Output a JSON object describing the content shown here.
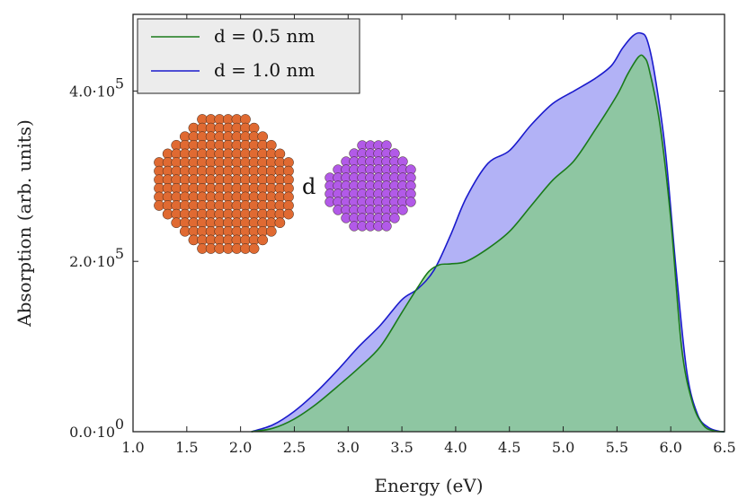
{
  "chart_data": {
    "type": "area",
    "title": "",
    "xlabel": "Energy (eV)",
    "ylabel": "Absorption (arb. units)",
    "xlim": [
      1.0,
      6.5
    ],
    "ylim": [
      0,
      490000
    ],
    "x_ticks": [
      "1.0",
      "1.5",
      "2.0",
      "2.5",
      "3.0",
      "3.5",
      "4.0",
      "4.5",
      "5.0",
      "5.5",
      "6.0",
      "6.5"
    ],
    "y_ticks": [
      {
        "value": 0,
        "base": "0.0·10",
        "exp": "0"
      },
      {
        "value": 200000,
        "base": "2.0·10",
        "exp": "5"
      },
      {
        "value": 400000,
        "base": "4.0·10",
        "exp": "5"
      }
    ],
    "grid": false,
    "legend_position": "top-left",
    "series": [
      {
        "name": "d = 0.5 nm",
        "line_color": "#1a7a1a",
        "fill_color": "#7fcf7f",
        "x": [
          2.1,
          2.3,
          2.5,
          2.7,
          2.9,
          3.1,
          3.3,
          3.5,
          3.65,
          3.75,
          3.85,
          3.95,
          4.1,
          4.3,
          4.5,
          4.7,
          4.9,
          5.1,
          5.3,
          5.5,
          5.6,
          5.7,
          5.75,
          5.8,
          5.9,
          6.0,
          6.1,
          6.2,
          6.3,
          6.4,
          6.5
        ],
        "y": [
          0,
          4000,
          15000,
          32000,
          53000,
          75000,
          100000,
          140000,
          170000,
          188000,
          196000,
          197000,
          200000,
          215000,
          235000,
          265000,
          295000,
          318000,
          355000,
          395000,
          420000,
          440000,
          440000,
          425000,
          360000,
          250000,
          100000,
          35000,
          8000,
          1000,
          0
        ]
      },
      {
        "name": "d = 1.0 nm",
        "line_color": "#1a1acc",
        "fill_color": "#7f7ff0",
        "x": [
          2.1,
          2.3,
          2.5,
          2.7,
          2.9,
          3.1,
          3.3,
          3.5,
          3.65,
          3.8,
          3.95,
          4.1,
          4.3,
          4.5,
          4.7,
          4.9,
          5.1,
          5.3,
          5.45,
          5.55,
          5.65,
          5.72,
          5.78,
          5.85,
          5.95,
          6.05,
          6.15,
          6.25,
          6.35,
          6.45,
          6.5
        ],
        "y": [
          0,
          8000,
          24000,
          46000,
          72000,
          100000,
          125000,
          155000,
          168000,
          190000,
          230000,
          275000,
          315000,
          330000,
          360000,
          385000,
          400000,
          415000,
          430000,
          450000,
          465000,
          468000,
          460000,
          420000,
          330000,
          190000,
          70000,
          20000,
          5000,
          500,
          0
        ]
      }
    ]
  },
  "legend": {
    "items": [
      {
        "label": "d = 0.5 nm",
        "color": "#1a7a1a"
      },
      {
        "label": "d = 1.0 nm",
        "color": "#1a1acc"
      }
    ]
  },
  "inset": {
    "separator_label": "d",
    "particle_colors": {
      "large": "#e06a32",
      "small": "#b25ae8",
      "outline": "#3a2a20"
    }
  }
}
